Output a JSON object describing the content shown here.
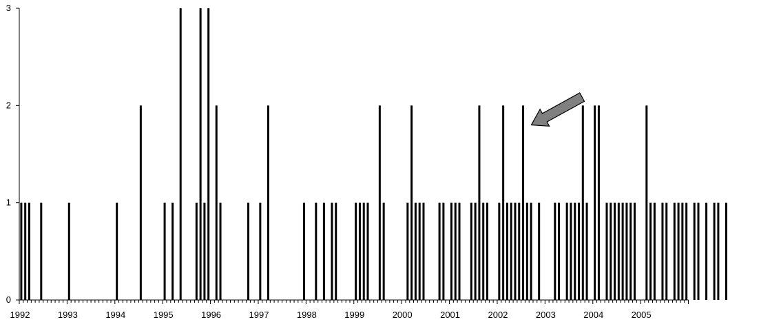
{
  "chart_data": {
    "type": "bar",
    "x_unit": "month",
    "x_start": "1992-01",
    "x_end": "2005-12",
    "ylim": [
      0,
      3
    ],
    "yticks": [
      "0",
      "1",
      "2",
      "3"
    ],
    "xticks": [
      "1992",
      "1993",
      "1994",
      "1995",
      "1996",
      "1997",
      "1998",
      "1999",
      "2000",
      "2001",
      "2002",
      "2003",
      "2004",
      "2005"
    ],
    "grid": false,
    "bars": [
      {
        "x": "1992-01",
        "y": 1
      },
      {
        "x": "1992-02",
        "y": 1
      },
      {
        "x": "1992-03",
        "y": 1
      },
      {
        "x": "1992-06",
        "y": 1
      },
      {
        "x": "1993-01",
        "y": 1
      },
      {
        "x": "1994-01",
        "y": 1
      },
      {
        "x": "1994-07",
        "y": 2
      },
      {
        "x": "1995-01",
        "y": 1
      },
      {
        "x": "1995-03",
        "y": 1
      },
      {
        "x": "1995-05",
        "y": 3
      },
      {
        "x": "1995-09",
        "y": 1
      },
      {
        "x": "1995-10",
        "y": 3
      },
      {
        "x": "1995-11",
        "y": 1
      },
      {
        "x": "1995-12",
        "y": 3
      },
      {
        "x": "1996-02",
        "y": 2
      },
      {
        "x": "1996-03",
        "y": 1
      },
      {
        "x": "1996-10",
        "y": 1
      },
      {
        "x": "1997-01",
        "y": 1
      },
      {
        "x": "1997-03",
        "y": 2
      },
      {
        "x": "1997-12",
        "y": 1
      },
      {
        "x": "1998-03",
        "y": 1
      },
      {
        "x": "1998-05",
        "y": 1
      },
      {
        "x": "1998-07",
        "y": 1
      },
      {
        "x": "1998-08",
        "y": 1
      },
      {
        "x": "1999-01",
        "y": 1
      },
      {
        "x": "1999-02",
        "y": 1
      },
      {
        "x": "1999-03",
        "y": 1
      },
      {
        "x": "1999-04",
        "y": 1
      },
      {
        "x": "1999-07",
        "y": 2
      },
      {
        "x": "1999-08",
        "y": 1
      },
      {
        "x": "2000-02",
        "y": 1
      },
      {
        "x": "2000-03",
        "y": 2
      },
      {
        "x": "2000-04",
        "y": 1
      },
      {
        "x": "2000-05",
        "y": 1
      },
      {
        "x": "2000-06",
        "y": 1
      },
      {
        "x": "2000-10",
        "y": 1
      },
      {
        "x": "2000-11",
        "y": 1
      },
      {
        "x": "2001-01",
        "y": 1
      },
      {
        "x": "2001-02",
        "y": 1
      },
      {
        "x": "2001-03",
        "y": 1
      },
      {
        "x": "2001-06",
        "y": 1
      },
      {
        "x": "2001-07",
        "y": 1
      },
      {
        "x": "2001-08",
        "y": 2
      },
      {
        "x": "2001-09",
        "y": 1
      },
      {
        "x": "2001-10",
        "y": 1
      },
      {
        "x": "2002-01",
        "y": 1
      },
      {
        "x": "2002-02",
        "y": 2
      },
      {
        "x": "2002-03",
        "y": 1
      },
      {
        "x": "2002-04",
        "y": 1
      },
      {
        "x": "2002-05",
        "y": 1
      },
      {
        "x": "2002-06",
        "y": 1
      },
      {
        "x": "2002-07",
        "y": 2
      },
      {
        "x": "2002-08",
        "y": 1
      },
      {
        "x": "2002-09",
        "y": 1
      },
      {
        "x": "2002-11",
        "y": 1
      },
      {
        "x": "2003-03",
        "y": 1
      },
      {
        "x": "2003-04",
        "y": 1
      },
      {
        "x": "2003-06",
        "y": 1
      },
      {
        "x": "2003-07",
        "y": 1
      },
      {
        "x": "2003-08",
        "y": 1
      },
      {
        "x": "2003-09",
        "y": 1
      },
      {
        "x": "2003-10",
        "y": 2
      },
      {
        "x": "2003-11",
        "y": 1
      },
      {
        "x": "2004-01",
        "y": 2
      },
      {
        "x": "2004-02",
        "y": 2
      },
      {
        "x": "2004-04",
        "y": 1
      },
      {
        "x": "2004-05",
        "y": 1
      },
      {
        "x": "2004-06",
        "y": 1
      },
      {
        "x": "2004-07",
        "y": 1
      },
      {
        "x": "2004-08",
        "y": 1
      },
      {
        "x": "2004-09",
        "y": 1
      },
      {
        "x": "2004-10",
        "y": 1
      },
      {
        "x": "2004-11",
        "y": 1
      },
      {
        "x": "2005-02",
        "y": 2
      },
      {
        "x": "2005-03",
        "y": 1
      },
      {
        "x": "2005-04",
        "y": 1
      },
      {
        "x": "2005-06",
        "y": 1
      },
      {
        "x": "2005-07",
        "y": 1
      },
      {
        "x": "2005-09",
        "y": 1
      },
      {
        "x": "2005-10",
        "y": 1
      },
      {
        "x": "2005-11",
        "y": 1
      },
      {
        "x": "2005-12",
        "y": 1
      },
      {
        "x": "2006-02",
        "y": 1
      },
      {
        "x": "2006-03",
        "y": 1
      },
      {
        "x": "2006-05",
        "y": 1
      },
      {
        "x": "2006-07",
        "y": 1
      },
      {
        "x": "2006-08",
        "y": 1
      },
      {
        "x": "2006-10",
        "y": 1
      }
    ],
    "annotations": [
      {
        "type": "arrow",
        "points_to": "2002-07",
        "color": "#808080"
      }
    ]
  }
}
